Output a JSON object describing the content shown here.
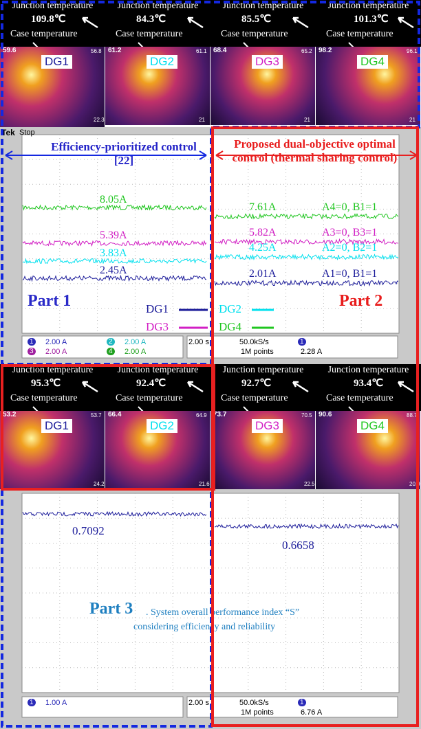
{
  "top_thermal": {
    "panels": [
      {
        "junction_label": "Junction temperature",
        "junction_value": "109.8℃",
        "case_label": "Case temperature",
        "name": "DG1",
        "max": "59.6",
        "right": "56.8",
        "min": "22.3"
      },
      {
        "junction_label": "Junction temperature",
        "junction_value": "84.3℃",
        "case_label": "Case temperature",
        "name": "DG2",
        "max": "61.2",
        "right": "61.1",
        "min": "21"
      },
      {
        "junction_label": "Junction temperature",
        "junction_value": "85.5℃",
        "case_label": "Case temperature",
        "name": "DG3",
        "max": "68.4",
        "right": "65.2",
        "min": "21"
      },
      {
        "junction_label": "Junction temperature",
        "junction_value": "101.3℃",
        "case_label": "Case temperature",
        "name": "DG4",
        "max": "98.2",
        "right": "96.1",
        "min": "21"
      }
    ]
  },
  "scope1": {
    "brand": "Tek",
    "status": "Stop",
    "left_title": "Efficiency-prioritized control [22]",
    "right_title": "Proposed dual-objective optimal control (thermal sharing control)",
    "left_traces": [
      {
        "label": "8.05A"
      },
      {
        "label": "5.39A"
      },
      {
        "label": "3.83A"
      },
      {
        "label": "2.45A"
      }
    ],
    "right_traces": [
      {
        "label": "7.61A",
        "state": "A4=0, B1=1"
      },
      {
        "label": "5.82A",
        "state": "A3=0, B3=1"
      },
      {
        "label": "4.25A",
        "state": "A2=0, B2=1"
      },
      {
        "label": "2.01A",
        "state": "A1=0, B1=1"
      }
    ],
    "legend": [
      "DG1",
      "DG2",
      "DG3",
      "DG4"
    ],
    "part_left": "Part 1",
    "part_right": "Part 2",
    "channels": [
      {
        "id": "1",
        "scale": "2.00 A"
      },
      {
        "id": "2",
        "scale": "2.00 A"
      },
      {
        "id": "3",
        "scale": "2.00 A"
      },
      {
        "id": "4",
        "scale": "2.00 A"
      }
    ],
    "time": "2.00 s",
    "rate": "50.0kS/s",
    "points": "1M points",
    "trigger_ch": "1",
    "trigger": "2.28 A"
  },
  "bottom_thermal": {
    "panels": [
      {
        "junction_label": "Junction temperature",
        "junction_value": "95.3℃",
        "case_label": "Case temperature",
        "name": "DG1",
        "max": "53.2",
        "right": "53.7",
        "min": "24.2"
      },
      {
        "junction_label": "Junction temperature",
        "junction_value": "92.4℃",
        "case_label": "Case temperature",
        "name": "DG2",
        "max": "66.4",
        "right": "64.9",
        "min": "21.6"
      },
      {
        "junction_label": "Junction temperature",
        "junction_value": "92.7℃",
        "case_label": "Case temperature",
        "name": "DG3",
        "max": "73.7",
        "right": "70.5",
        "min": "22.5"
      },
      {
        "junction_label": "Junction temperature",
        "junction_value": "93.4℃",
        "case_label": "Case temperature",
        "name": "DG4",
        "max": "90.6",
        "right": "88.7",
        "min": "20.9"
      }
    ]
  },
  "scope2": {
    "left_value": "0.7092",
    "right_value": "0.6658",
    "part": "Part 3",
    "caption_1": ". System overall performance index “S”",
    "caption_2": "considering efficiency and reliability",
    "channel": "1",
    "scale": "1.00 A",
    "time": "2.00 s",
    "rate": "50.0kS/s",
    "points": "1M points",
    "trigger_ch": "1",
    "trigger": "6.76 A"
  }
}
